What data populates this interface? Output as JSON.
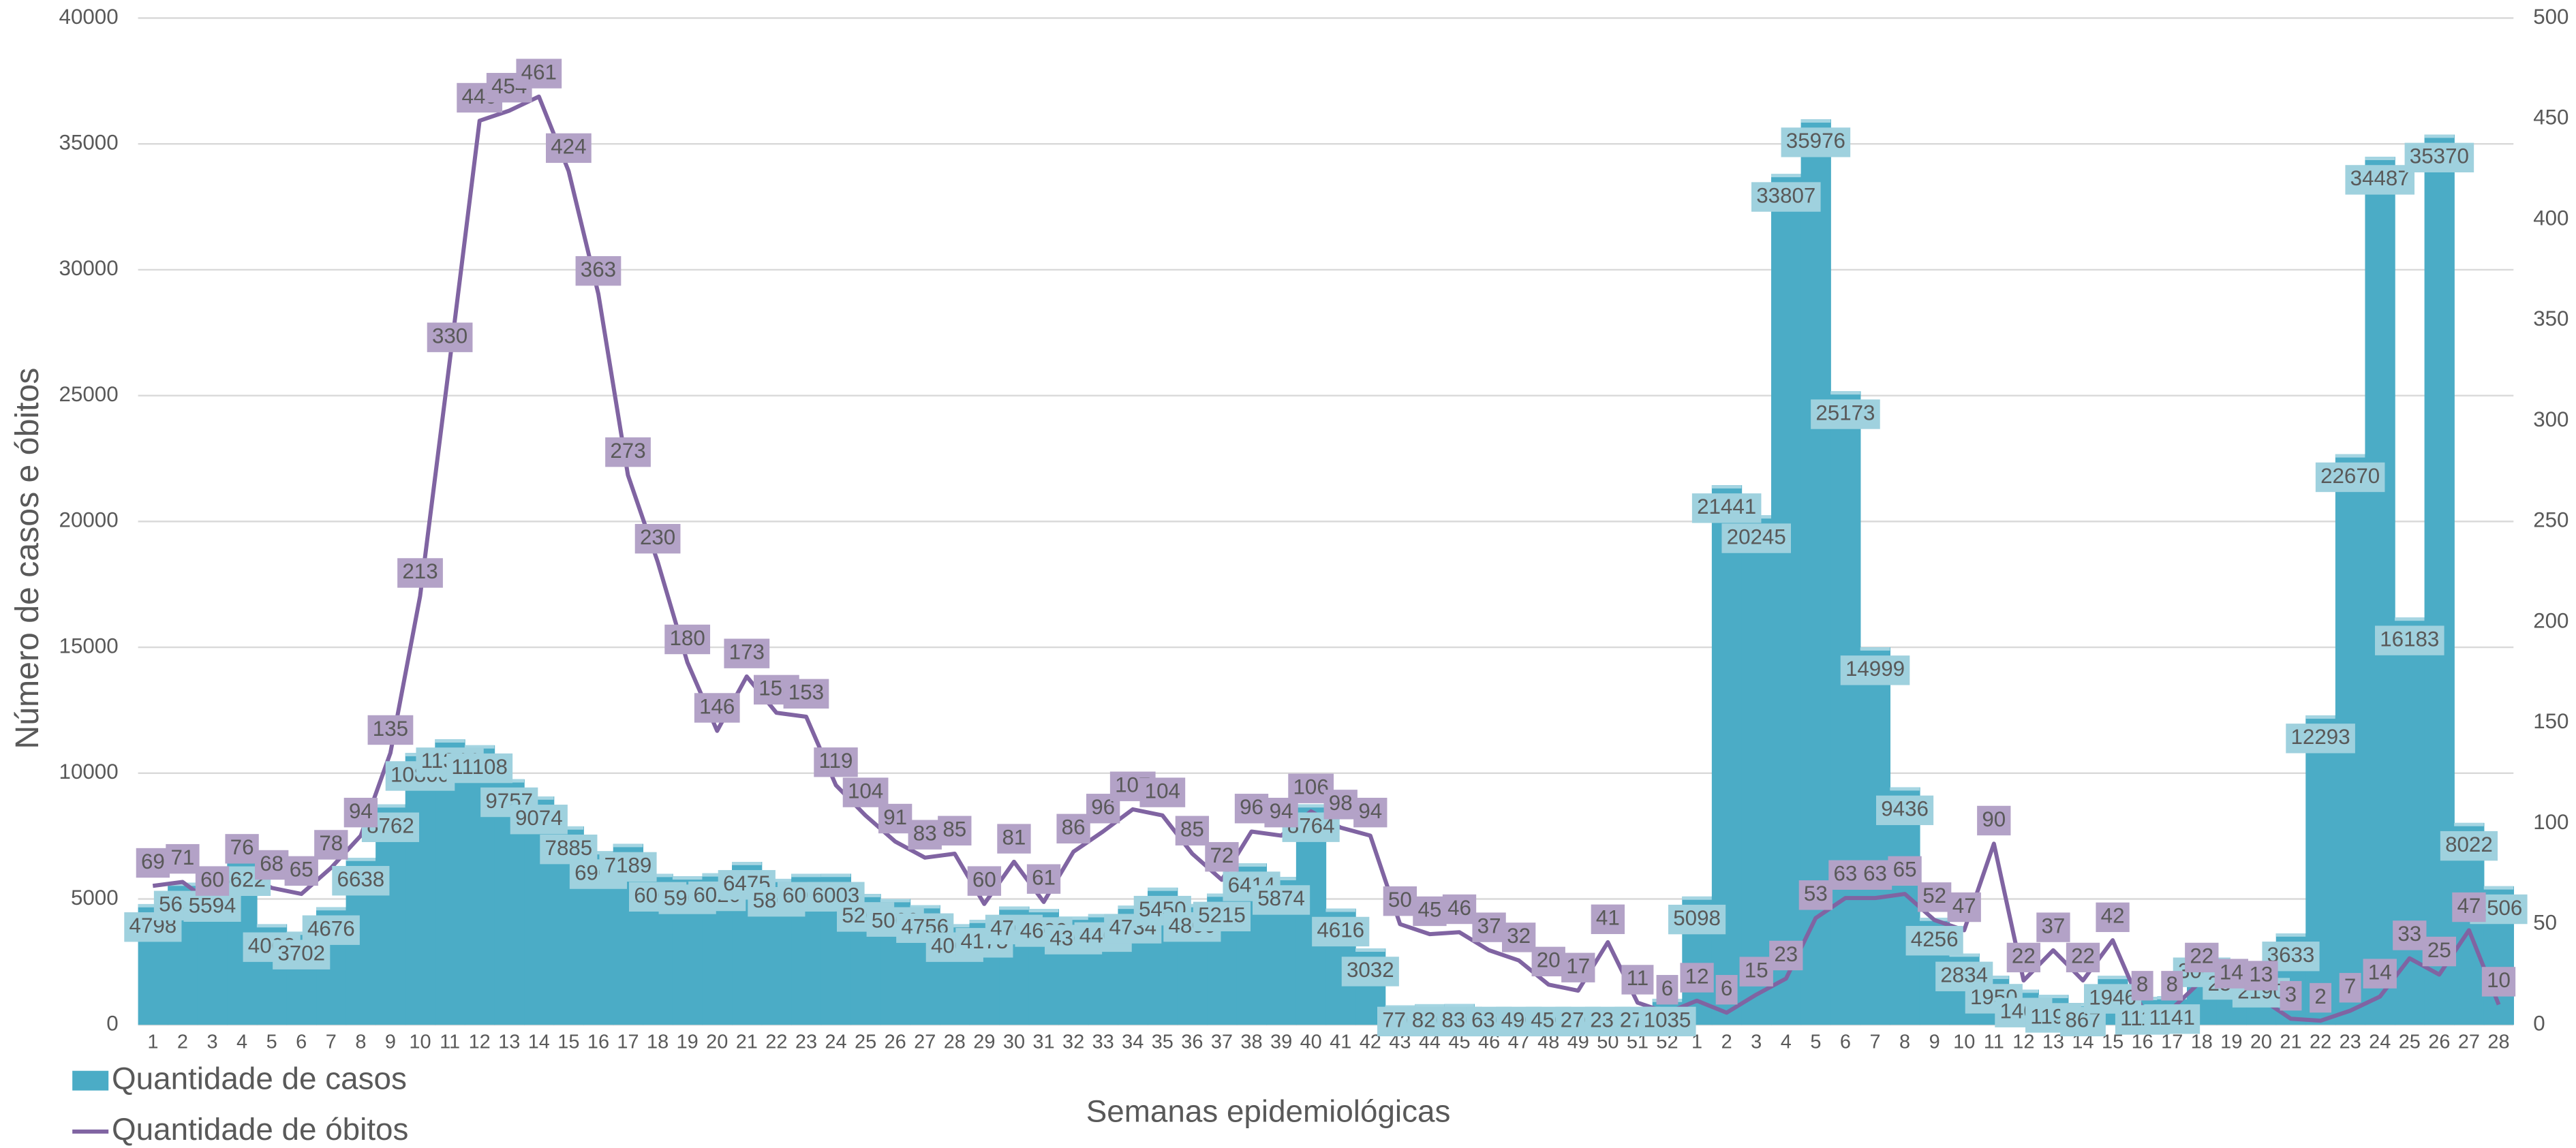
{
  "chart_data": {
    "type": "combo",
    "categories": [
      "1",
      "2",
      "3",
      "4",
      "5",
      "6",
      "7",
      "8",
      "9",
      "10",
      "11",
      "12",
      "13",
      "14",
      "15",
      "16",
      "17",
      "18",
      "19",
      "20",
      "21",
      "22",
      "23",
      "24",
      "25",
      "26",
      "27",
      "28",
      "29",
      "30",
      "31",
      "32",
      "33",
      "34",
      "35",
      "36",
      "37",
      "38",
      "39",
      "40",
      "41",
      "42",
      "43",
      "44",
      "45",
      "46",
      "47",
      "48",
      "49",
      "50",
      "51",
      "52",
      "1",
      "2",
      "3",
      "4",
      "5",
      "6",
      "7",
      "8",
      "9",
      "10",
      "11",
      "12",
      "13",
      "14",
      "15",
      "16",
      "17",
      "18",
      "19",
      "20",
      "21",
      "22",
      "23",
      "24",
      "25",
      "26",
      "27",
      "28"
    ],
    "series": [
      {
        "name": "Quantidade de casos",
        "type": "bar",
        "color": "#4bacc6",
        "values": [
          4798,
          5650,
          5594,
          6622,
          4000,
          3702,
          4676,
          6638,
          8762,
          10800,
          11344,
          11108,
          9757,
          9074,
          7885,
          6900,
          7189,
          6000,
          5900,
          6020,
          6475,
          5800,
          6000,
          6003,
          5200,
          5000,
          4756,
          4000,
          4173,
          4700,
          4600,
          4300,
          4400,
          4734,
          5450,
          4800,
          5215,
          6414,
          5874,
          8764,
          4616,
          3032,
          770,
          820,
          830,
          630,
          490,
          450,
          270,
          236,
          278,
          1035,
          5098,
          21441,
          20245,
          33807,
          35976,
          25173,
          14999,
          9436,
          4256,
          2834,
          1950,
          1400,
          1190,
          867,
          1946,
          1110,
          1141,
          3000,
          2500,
          2190,
          3633,
          12293,
          22670,
          34487,
          16183,
          35370,
          8022,
          5506
        ]
      },
      {
        "name": "Quantidade de óbitos",
        "type": "line",
        "axis": "y2",
        "color": "#8064a2",
        "values": [
          69,
          71,
          60,
          76,
          68,
          65,
          78,
          94,
          135,
          213,
          330,
          449,
          454,
          461,
          424,
          363,
          273,
          230,
          180,
          146,
          173,
          155,
          153,
          119,
          104,
          91,
          83,
          85,
          60,
          81,
          61,
          86,
          96,
          107,
          104,
          85,
          72,
          96,
          94,
          106,
          98,
          94,
          50,
          45,
          46,
          37,
          32,
          20,
          17,
          41,
          11,
          6,
          12,
          6,
          15,
          23,
          53,
          63,
          63,
          65,
          52,
          47,
          90,
          22,
          37,
          22,
          42,
          8,
          8,
          22,
          14,
          13,
          3,
          2,
          7,
          14,
          33,
          25,
          47,
          10
        ]
      }
    ],
    "ylabel": "Número de casos e óbitos",
    "xlabel": "Semanas epidemiológicas",
    "ylim": [
      0,
      40000
    ],
    "yticks": [
      0,
      5000,
      10000,
      15000,
      20000,
      25000,
      30000,
      35000,
      40000
    ],
    "y2lim": [
      0,
      500
    ],
    "y2ticks": [
      0,
      50,
      100,
      150,
      200,
      250,
      300,
      350,
      400,
      450,
      500
    ],
    "grid": true,
    "legend": "bottom-left"
  }
}
